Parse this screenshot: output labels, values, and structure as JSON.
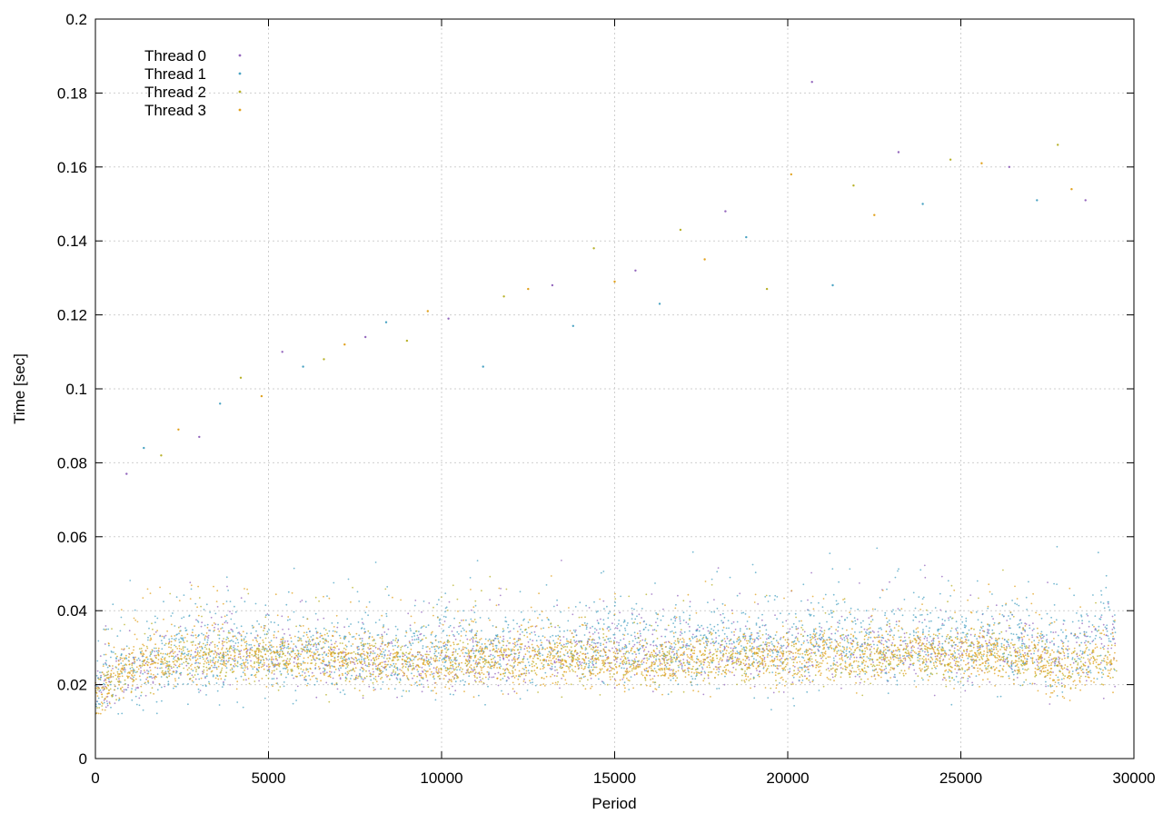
{
  "chart_data": {
    "type": "scatter",
    "title": "",
    "xlabel": "Period",
    "ylabel": "Time [sec]",
    "xlim": [
      0,
      30000
    ],
    "ylim": [
      0,
      0.2
    ],
    "xticks": [
      0,
      5000,
      10000,
      15000,
      20000,
      25000,
      30000
    ],
    "xtick_labels": [
      "0",
      "5000",
      "10000",
      "15000",
      "20000",
      "25000",
      "30000"
    ],
    "yticks": [
      0,
      0.02,
      0.04,
      0.06,
      0.08,
      0.1,
      0.12,
      0.14,
      0.16,
      0.18,
      0.2
    ],
    "ytick_labels": [
      "0",
      "0.02",
      "0.04",
      "0.06",
      "0.08",
      "0.1",
      "0.12",
      "0.14",
      "0.16",
      "0.18",
      "0.2"
    ],
    "grid": true,
    "legend_position": "top-left",
    "series": [
      {
        "name": "Thread 0",
        "color": "#9467bd",
        "x": [
          0,
          1000,
          2000,
          3000,
          4000,
          5000,
          6000,
          7000,
          8000,
          9000,
          10000,
          11000,
          12000,
          13000,
          14000,
          15000,
          16000,
          17000,
          18000,
          19000,
          20000,
          21000,
          22000,
          23000,
          24000,
          25000,
          26000,
          27000,
          28000,
          29000,
          29500
        ],
        "y": [
          0.018,
          0.024,
          0.026,
          0.027,
          0.028,
          0.027,
          0.028,
          0.027,
          0.027,
          0.026,
          0.027,
          0.028,
          0.027,
          0.028,
          0.029,
          0.029,
          0.028,
          0.028,
          0.029,
          0.029,
          0.029,
          0.03,
          0.029,
          0.029,
          0.029,
          0.029,
          0.03,
          0.029,
          0.027,
          0.031,
          0.03
        ]
      },
      {
        "name": "Thread 1",
        "color": "#4ba3c3",
        "x": [
          0,
          1000,
          2000,
          3000,
          4000,
          5000,
          6000,
          7000,
          8000,
          9000,
          10000,
          11000,
          12000,
          13000,
          14000,
          15000,
          16000,
          17000,
          18000,
          19000,
          20000,
          21000,
          22000,
          23000,
          24000,
          25000,
          26000,
          27000,
          28000,
          29000,
          29500
        ],
        "y": [
          0.019,
          0.025,
          0.027,
          0.028,
          0.029,
          0.028,
          0.029,
          0.028,
          0.028,
          0.027,
          0.029,
          0.03,
          0.029,
          0.03,
          0.031,
          0.032,
          0.031,
          0.03,
          0.031,
          0.031,
          0.031,
          0.032,
          0.031,
          0.031,
          0.031,
          0.031,
          0.031,
          0.03,
          0.028,
          0.034,
          0.033
        ]
      },
      {
        "name": "Thread 2",
        "color": "#b8b12a",
        "x": [
          0,
          1000,
          2000,
          3000,
          4000,
          5000,
          6000,
          7000,
          8000,
          9000,
          10000,
          11000,
          12000,
          13000,
          14000,
          15000,
          16000,
          17000,
          18000,
          19000,
          20000,
          21000,
          22000,
          23000,
          24000,
          25000,
          26000,
          27000,
          28000,
          29000,
          29500
        ],
        "y": [
          0.017,
          0.024,
          0.026,
          0.027,
          0.027,
          0.027,
          0.027,
          0.026,
          0.026,
          0.026,
          0.026,
          0.027,
          0.026,
          0.027,
          0.027,
          0.027,
          0.026,
          0.027,
          0.027,
          0.027,
          0.027,
          0.028,
          0.027,
          0.028,
          0.028,
          0.027,
          0.028,
          0.027,
          0.025,
          0.028,
          0.028
        ]
      },
      {
        "name": "Thread 3",
        "color": "#e1a21f",
        "x": [
          0,
          1000,
          2000,
          3000,
          4000,
          5000,
          6000,
          7000,
          8000,
          9000,
          10000,
          11000,
          12000,
          13000,
          14000,
          15000,
          16000,
          17000,
          18000,
          19000,
          20000,
          21000,
          22000,
          23000,
          24000,
          25000,
          26000,
          27000,
          28000,
          29000,
          29500
        ],
        "y": [
          0.017,
          0.025,
          0.027,
          0.028,
          0.028,
          0.028,
          0.028,
          0.027,
          0.027,
          0.026,
          0.026,
          0.027,
          0.026,
          0.027,
          0.027,
          0.025,
          0.025,
          0.027,
          0.027,
          0.027,
          0.027,
          0.028,
          0.027,
          0.028,
          0.028,
          0.028,
          0.028,
          0.027,
          0.024,
          0.027,
          0.027
        ]
      }
    ],
    "outliers": {
      "x": [
        900,
        1400,
        1900,
        2400,
        3000,
        3600,
        4200,
        4800,
        5400,
        6000,
        6600,
        7200,
        7800,
        8400,
        9000,
        9600,
        10200,
        11200,
        11800,
        12500,
        13200,
        13800,
        14400,
        15000,
        15600,
        16300,
        16900,
        17600,
        18200,
        18800,
        19400,
        20100,
        20700,
        21300,
        21900,
        22500,
        23200,
        23900,
        24700,
        25600,
        26400,
        27200,
        27800,
        28200,
        28600
      ],
      "y": [
        0.077,
        0.084,
        0.082,
        0.089,
        0.087,
        0.096,
        0.103,
        0.098,
        0.11,
        0.106,
        0.108,
        0.112,
        0.114,
        0.118,
        0.113,
        0.121,
        0.119,
        0.106,
        0.125,
        0.127,
        0.128,
        0.117,
        0.138,
        0.129,
        0.132,
        0.123,
        0.143,
        0.135,
        0.148,
        0.141,
        0.127,
        0.158,
        0.183,
        0.128,
        0.155,
        0.147,
        0.164,
        0.15,
        0.162,
        0.161,
        0.16,
        0.151,
        0.166,
        0.154,
        0.151
      ]
    }
  }
}
